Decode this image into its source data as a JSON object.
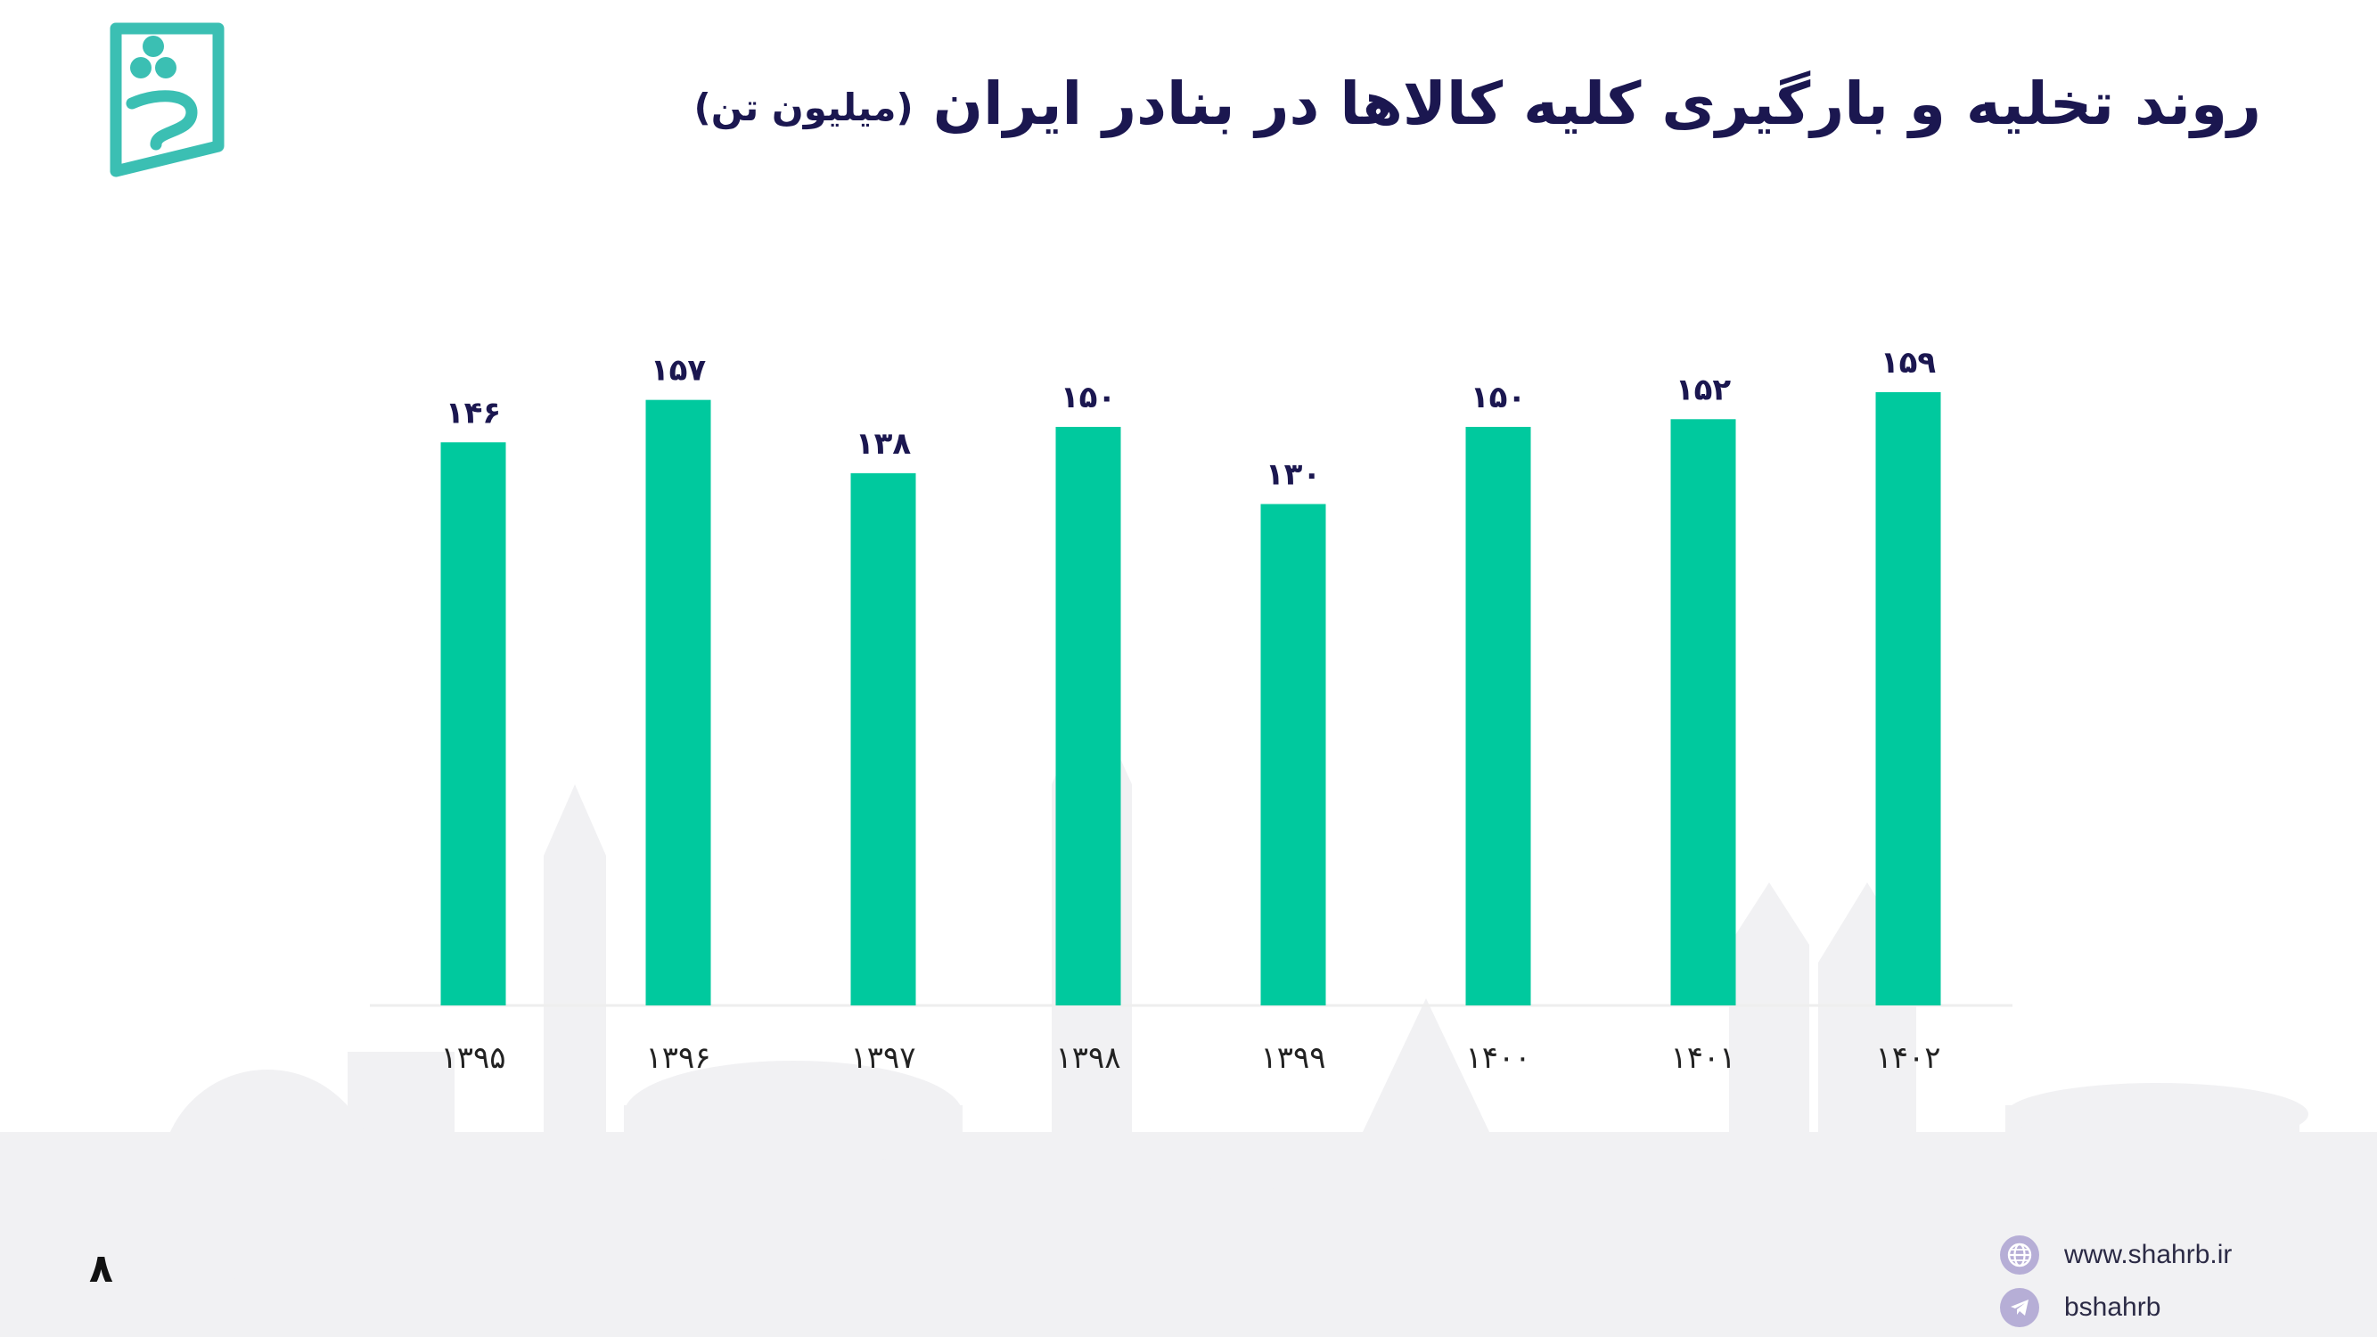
{
  "page": {
    "title": "روند تخلیه و بارگیری کلیه کالاها در بنادر ایران",
    "subtitle": "(میلیون تن)",
    "page_number": "۸"
  },
  "contact": {
    "website": "www.shahrb.ir",
    "website_icon": "globe-icon",
    "telegram": "bshahrb",
    "telegram_icon": "telegram-icon"
  },
  "logo": {
    "name": "brand-logo-icon",
    "color": "#3bbfb3"
  },
  "colors": {
    "bar": "#00c99e",
    "title": "#1b1750",
    "labels": "#1b1750"
  },
  "chart_data": {
    "type": "bar",
    "title": "روند تخلیه و بارگیری کلیه کالاها در بنادر ایران",
    "subtitle": "(میلیون تن)",
    "categories": [
      "۱۳۹۵",
      "۱۳۹۶",
      "۱۳۹۷",
      "۱۳۹۸",
      "۱۳۹۹",
      "۱۴۰۰",
      "۱۴۰۱",
      "۱۴۰۲"
    ],
    "values": [
      146,
      157,
      138,
      150,
      130,
      150,
      152,
      159
    ],
    "data_labels": [
      "۱۴۶",
      "۱۵۷",
      "۱۳۸",
      "۱۵۰",
      "۱۳۰",
      "۱۵۰",
      "۱۵۲",
      "۱۵۹"
    ],
    "xlabel": "",
    "ylabel": "",
    "ylim": [
      0,
      159
    ],
    "grid": false,
    "legend": "none"
  }
}
